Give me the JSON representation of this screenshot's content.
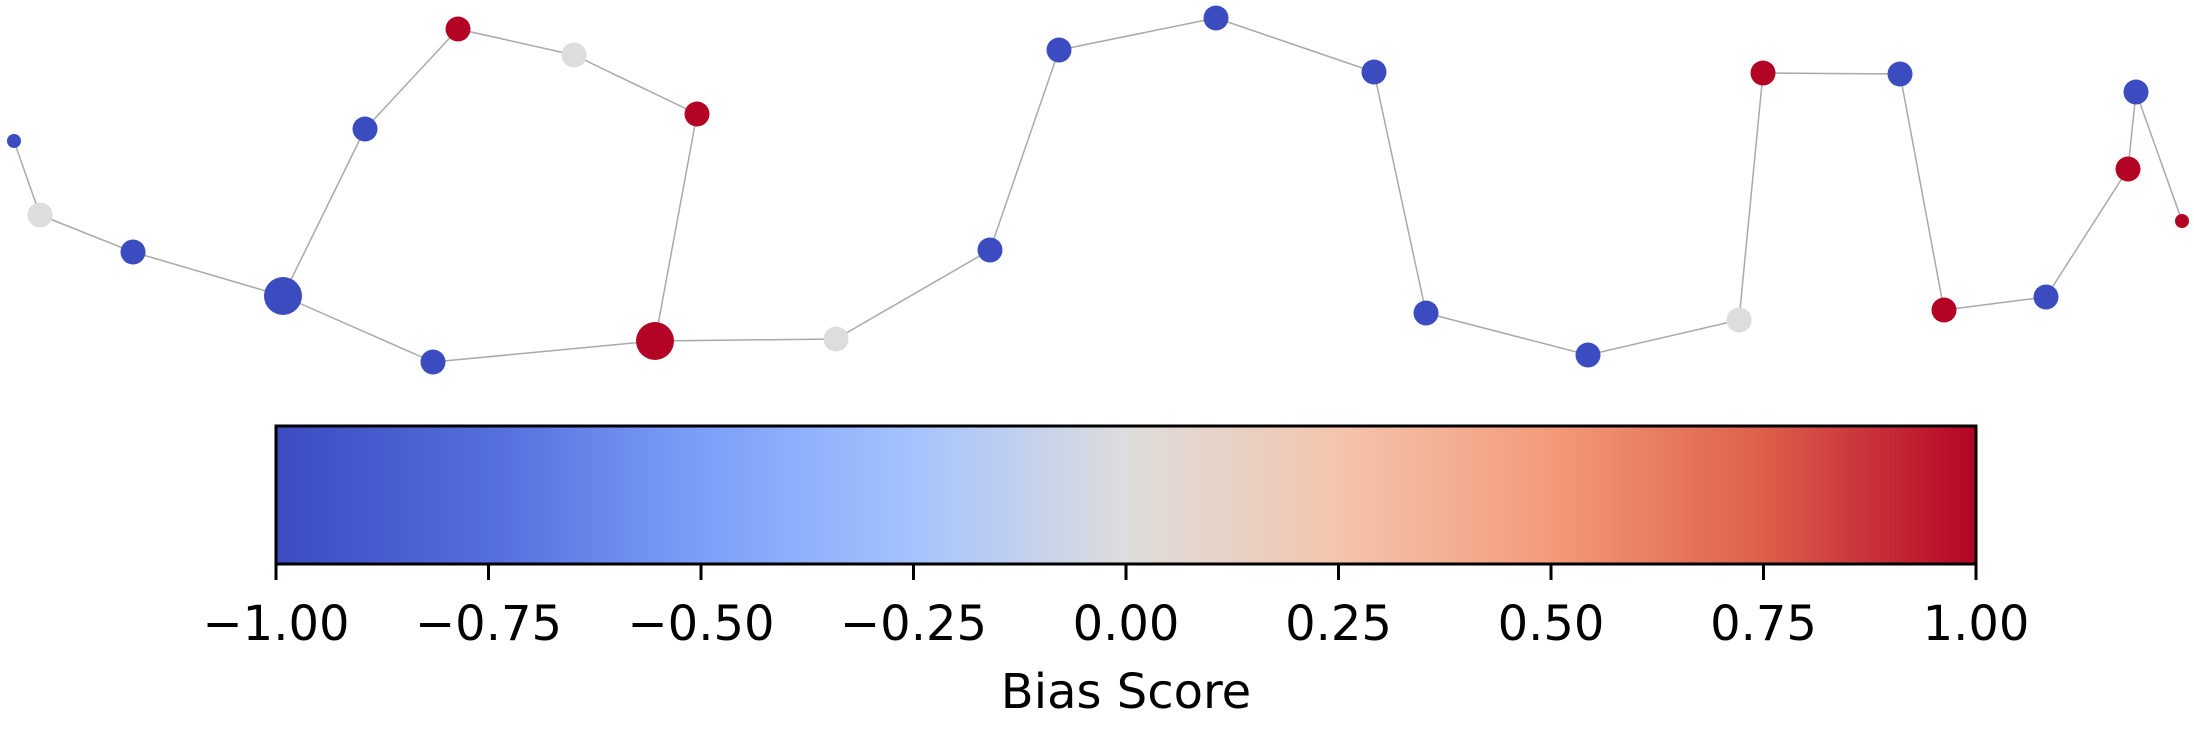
{
  "chart_data": {
    "type": "network",
    "colormap": "coolwarm",
    "colorbar": {
      "label": "Bias Score",
      "range": [
        -1.0,
        1.0
      ],
      "ticks": [
        -1.0,
        -0.75,
        -0.5,
        -0.25,
        0.0,
        0.25,
        0.5,
        0.75,
        1.0
      ],
      "tick_labels": [
        "−1.00",
        "−0.75",
        "−0.50",
        "−0.25",
        "0.00",
        "0.25",
        "0.50",
        "0.75",
        "1.00"
      ],
      "colors": {
        "low": "#3b4cc0",
        "mid": "#dddddd",
        "high": "#b40426"
      }
    },
    "nodes": [
      {
        "id": 0,
        "bias": -1.0,
        "weight": 1
      },
      {
        "id": 1,
        "bias": 0.0,
        "weight": 2
      },
      {
        "id": 2,
        "bias": -1.0,
        "weight": 2
      },
      {
        "id": 3,
        "bias": -1.0,
        "weight": 4
      },
      {
        "id": 4,
        "bias": -1.0,
        "weight": 2
      },
      {
        "id": 5,
        "bias": 1.0,
        "weight": 2
      },
      {
        "id": 6,
        "bias": 0.0,
        "weight": 2
      },
      {
        "id": 7,
        "bias": 1.0,
        "weight": 2
      },
      {
        "id": 8,
        "bias": 1.0,
        "weight": 4
      },
      {
        "id": 9,
        "bias": -1.0,
        "weight": 2
      },
      {
        "id": 10,
        "bias": 0.0,
        "weight": 2
      },
      {
        "id": 11,
        "bias": -1.0,
        "weight": 2
      },
      {
        "id": 12,
        "bias": -1.0,
        "weight": 2
      },
      {
        "id": 13,
        "bias": -1.0,
        "weight": 2
      },
      {
        "id": 14,
        "bias": -1.0,
        "weight": 2
      },
      {
        "id": 15,
        "bias": -1.0,
        "weight": 2
      },
      {
        "id": 16,
        "bias": -1.0,
        "weight": 2
      },
      {
        "id": 17,
        "bias": 0.0,
        "weight": 2
      },
      {
        "id": 18,
        "bias": 1.0,
        "weight": 2
      },
      {
        "id": 19,
        "bias": -1.0,
        "weight": 2
      },
      {
        "id": 20,
        "bias": 1.0,
        "weight": 2
      },
      {
        "id": 21,
        "bias": -1.0,
        "weight": 2
      },
      {
        "id": 22,
        "bias": 1.0,
        "weight": 2
      },
      {
        "id": 23,
        "bias": -1.0,
        "weight": 2
      },
      {
        "id": 24,
        "bias": 1.0,
        "weight": 1
      }
    ],
    "edges": [
      [
        0,
        1
      ],
      [
        1,
        2
      ],
      [
        2,
        3
      ],
      [
        3,
        4
      ],
      [
        4,
        5
      ],
      [
        5,
        6
      ],
      [
        6,
        7
      ],
      [
        7,
        8
      ],
      [
        3,
        9
      ],
      [
        9,
        8
      ],
      [
        8,
        10
      ],
      [
        10,
        11
      ],
      [
        11,
        12
      ],
      [
        12,
        13
      ],
      [
        13,
        14
      ],
      [
        14,
        15
      ],
      [
        15,
        16
      ],
      [
        16,
        17
      ],
      [
        17,
        18
      ],
      [
        18,
        19
      ],
      [
        19,
        20
      ],
      [
        20,
        21
      ],
      [
        21,
        22
      ],
      [
        22,
        23
      ],
      [
        23,
        24
      ]
    ]
  }
}
